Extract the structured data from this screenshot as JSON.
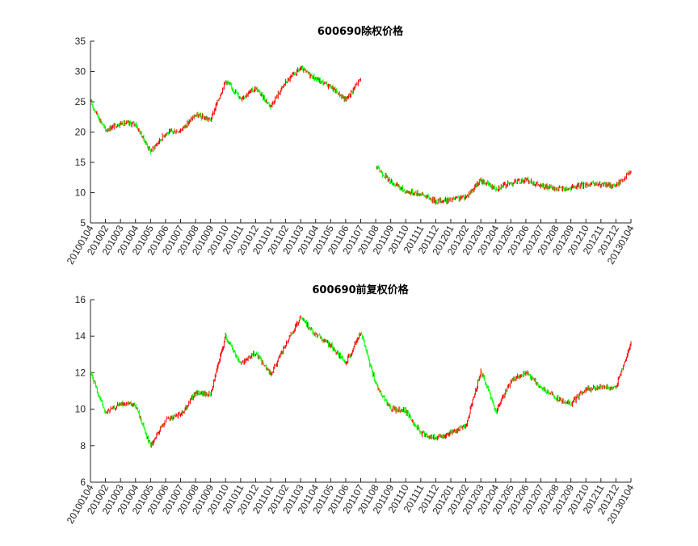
{
  "chart_data": [
    {
      "type": "line",
      "title": "600690除权价格",
      "xlabel": "",
      "ylabel": "",
      "ylim": [
        5,
        35
      ],
      "yticks": [
        "5",
        "10",
        "15",
        "20",
        "25",
        "30",
        "35"
      ],
      "xticks": [
        "20100104",
        "201002",
        "201003",
        "201004",
        "201005",
        "201006",
        "201007",
        "201008",
        "201009",
        "201010",
        "201011",
        "201012",
        "201101",
        "201102",
        "201103",
        "201104",
        "201105",
        "201106",
        "201107",
        "201108",
        "201109",
        "201110",
        "201111",
        "201112",
        "201201",
        "201202",
        "201203",
        "201204",
        "201205",
        "201206",
        "201207",
        "201208",
        "201209",
        "201210",
        "201211",
        "201212",
        "20130104"
      ],
      "up_color": "#ff0000",
      "down_color": "#00ff00",
      "series": [
        {
          "x": [
            "20100104",
            "201002",
            "201003",
            "201004",
            "201005",
            "201006",
            "201007",
            "201008",
            "201009",
            "201010",
            "201011",
            "201012",
            "201101",
            "201102",
            "201103",
            "201104",
            "201105",
            "201106",
            "201107"
          ],
          "values": [
            25.0,
            20.3,
            21.5,
            21.3,
            16.8,
            19.8,
            20.3,
            22.8,
            22.0,
            28.5,
            25.6,
            27.2,
            24.3,
            28.2,
            30.5,
            28.8,
            27.5,
            25.3,
            28.8
          ]
        },
        {
          "x": [
            "201108",
            "201109",
            "201110",
            "201111",
            "201112",
            "201201",
            "201202",
            "201203",
            "201204",
            "201205",
            "201206",
            "201207",
            "201208",
            "201209",
            "201210",
            "201211",
            "201212",
            "20130104"
          ],
          "values": [
            14.3,
            11.8,
            10.2,
            9.8,
            8.6,
            8.8,
            9.3,
            12.0,
            10.7,
            11.6,
            12.1,
            11.1,
            10.6,
            10.7,
            11.4,
            11.3,
            11.2,
            13.5
          ]
        }
      ]
    },
    {
      "type": "line",
      "title": "600690前复权价格",
      "xlabel": "",
      "ylabel": "",
      "ylim": [
        6,
        16
      ],
      "yticks": [
        "6",
        "8",
        "10",
        "12",
        "14",
        "16"
      ],
      "xticks": [
        "20100104",
        "201002",
        "201003",
        "201004",
        "201005",
        "201006",
        "201007",
        "201008",
        "201009",
        "201010",
        "201011",
        "201012",
        "201101",
        "201102",
        "201103",
        "201104",
        "201105",
        "201106",
        "201107",
        "201108",
        "201109",
        "201110",
        "201111",
        "201112",
        "201201",
        "201202",
        "201203",
        "201204",
        "201205",
        "201206",
        "201207",
        "201208",
        "201209",
        "201210",
        "201211",
        "201212",
        "20130104"
      ],
      "up_color": "#ff0000",
      "down_color": "#00ff00",
      "series": [
        {
          "x": [
            "20100104",
            "201002",
            "201003",
            "201004",
            "201005",
            "201006",
            "201007",
            "201008",
            "201009",
            "201010",
            "201011",
            "201012",
            "201101",
            "201102",
            "201103",
            "201104",
            "201105",
            "201106",
            "201107",
            "201108",
            "201109",
            "201110",
            "201111",
            "201112",
            "201201",
            "201202",
            "201203",
            "201204",
            "201205",
            "201206",
            "201207",
            "201208",
            "201209",
            "201210",
            "201211",
            "201212",
            "20130104"
          ],
          "values": [
            12.0,
            9.8,
            10.3,
            10.2,
            8.0,
            9.4,
            9.7,
            10.9,
            10.8,
            14.0,
            12.5,
            13.1,
            11.9,
            13.5,
            15.0,
            14.1,
            13.5,
            12.5,
            14.2,
            11.4,
            10.0,
            9.9,
            8.7,
            8.4,
            8.7,
            9.1,
            12.1,
            9.9,
            11.5,
            12.0,
            11.2,
            10.6,
            10.3,
            11.1,
            11.2,
            11.2,
            13.6
          ]
        }
      ]
    }
  ]
}
